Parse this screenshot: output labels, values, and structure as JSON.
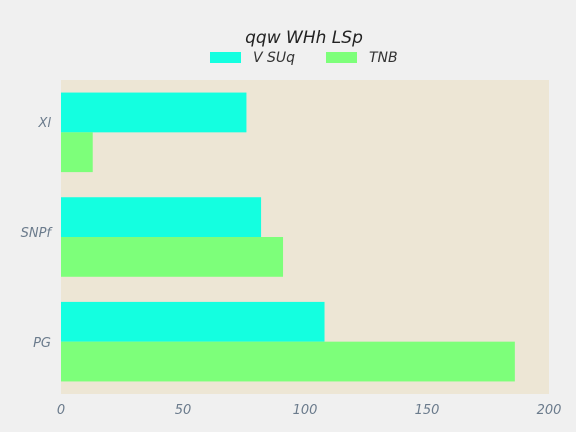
{
  "chart_data": {
    "type": "bar",
    "orientation": "horizontal",
    "title": "qqw  WHh LSp",
    "categories": [
      "Xl",
      "SNPf",
      "PG"
    ],
    "series": [
      {
        "name": "V SUq",
        "values": [
          76,
          82,
          108
        ]
      },
      {
        "name": "TNB",
        "values": [
          13,
          91,
          186
        ]
      }
    ],
    "xlim": [
      0,
      200
    ],
    "xticks": [
      "0",
      "50",
      "100",
      "150",
      "200"
    ],
    "xlabel": "",
    "ylabel": "",
    "grid": false,
    "legend_position": "top-center",
    "colors": {
      "series": [
        "#14ffe0",
        "#7dff7a"
      ],
      "plot_background": "#ede6d5",
      "figure_background": "#f0f0f0",
      "tick_text": "#6b7b8c",
      "title_text": "#222222"
    }
  }
}
